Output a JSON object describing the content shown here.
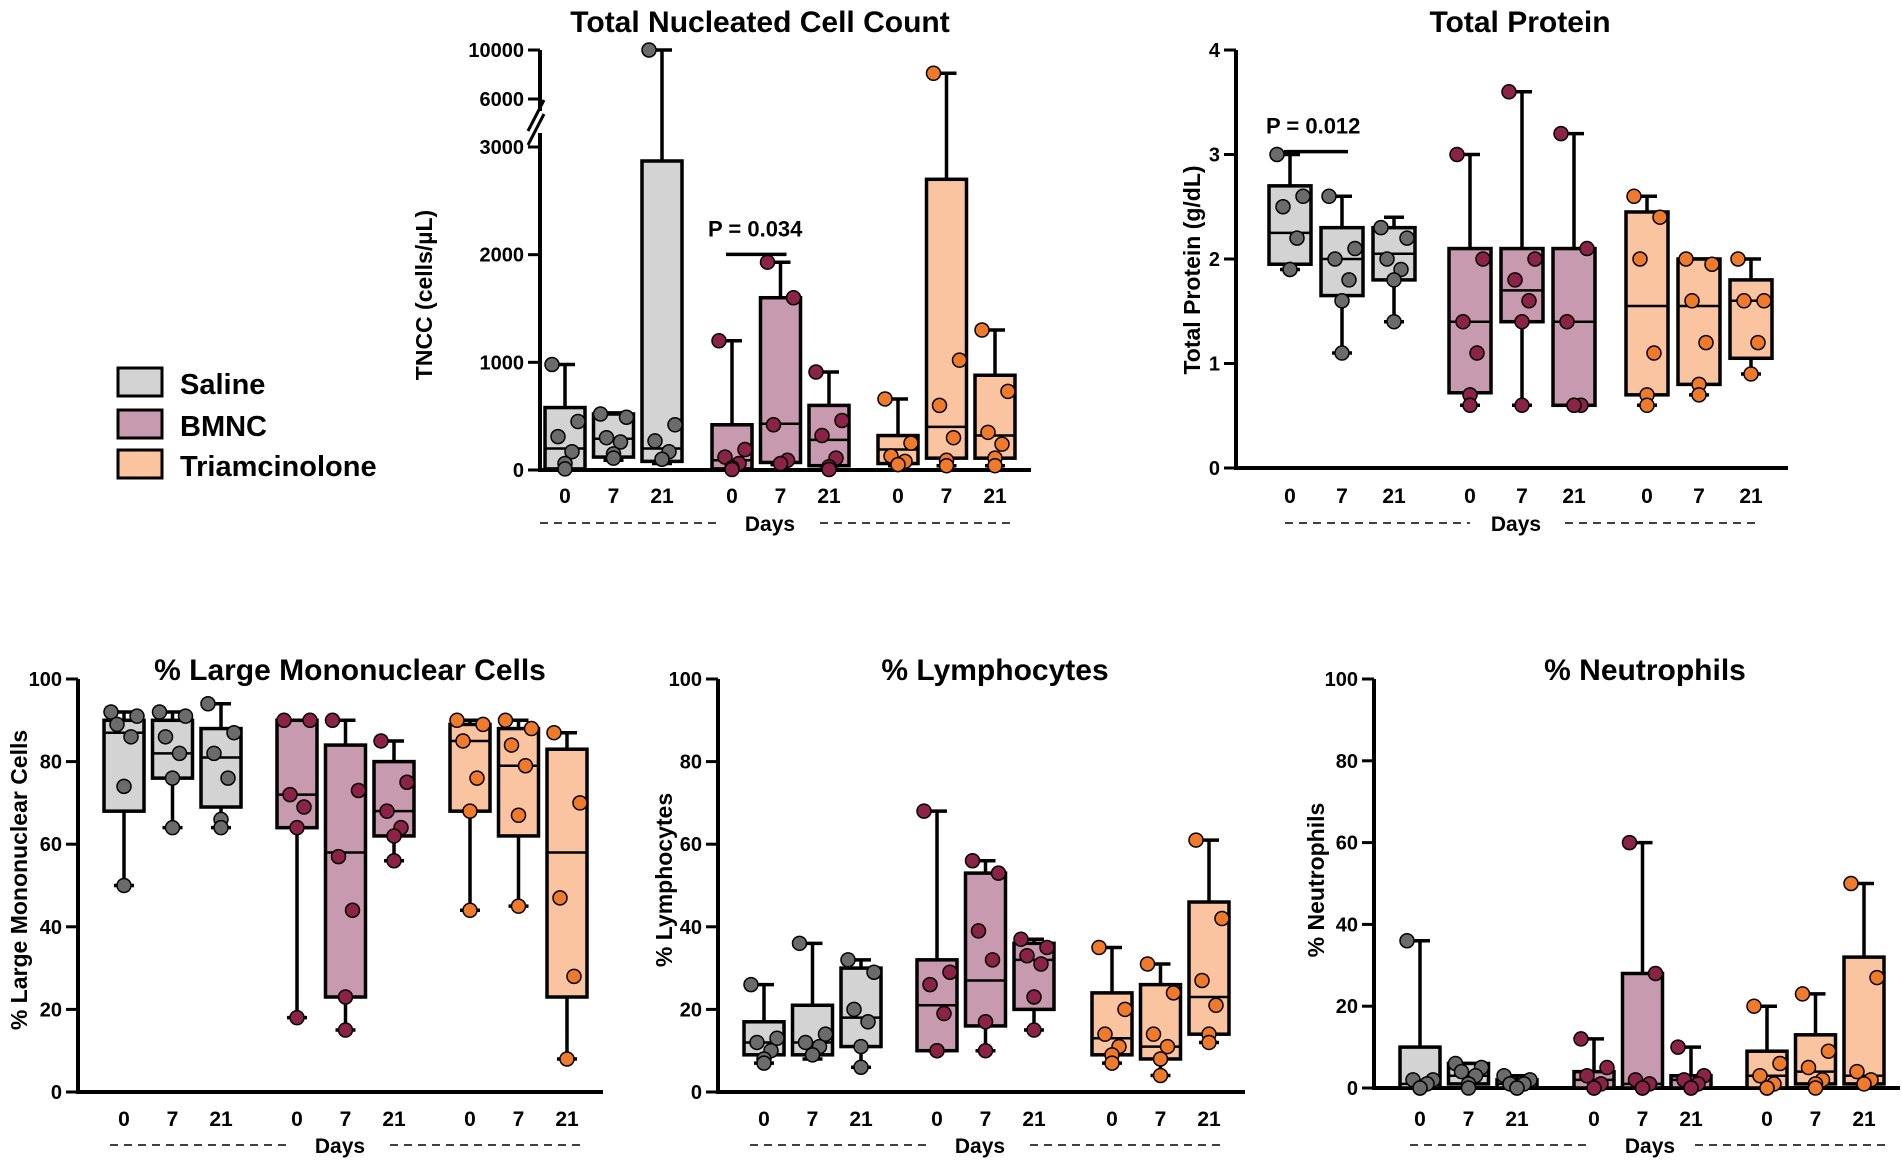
{
  "legend": [
    {
      "label": "Saline",
      "fill": "#d3d3d3",
      "dot": "#6b6b6b"
    },
    {
      "label": "BMNC",
      "fill": "#c79aaf",
      "dot": "#8b2346"
    },
    {
      "label": "Triamcinolone",
      "fill": "#fbc4a0",
      "dot": "#ef7a2c"
    }
  ],
  "chart_data": [
    {
      "id": "tncc",
      "type": "box",
      "title": "Total Nucleated Cell Count",
      "ylabel": "TNCC (cells/µL)",
      "xlabel": "Days",
      "ylim": [
        0,
        10000
      ],
      "y_break": [
        3000,
        6000
      ],
      "yticks": [
        0,
        1000,
        2000,
        3000,
        6000,
        10000
      ],
      "ytick_labels": [
        "0",
        "1000",
        "2000",
        "3000",
        "6000",
        "10000"
      ],
      "days": [
        "0",
        "7",
        "21"
      ],
      "significance": {
        "label": "P = 0.034",
        "from_group": 1,
        "from_day": 0,
        "to_day": 1,
        "y": 2170
      },
      "groups": [
        {
          "name": "Saline",
          "boxes": [
            {
              "day": "0",
              "min": 0,
              "q1": 10,
              "median": 200,
              "q3": 580,
              "max": 980,
              "points": [
                980,
                450,
                310,
                170,
                60,
                10
              ]
            },
            {
              "day": "7",
              "min": 90,
              "q1": 120,
              "median": 290,
              "q3": 520,
              "max": 530,
              "points": [
                520,
                490,
                300,
                260,
                150,
                110
              ]
            },
            {
              "day": "21",
              "min": 60,
              "q1": 80,
              "median": 200,
              "q3": 2870,
              "max": 10000,
              "points": [
                10000,
                420,
                270,
                170,
                100
              ]
            }
          ]
        },
        {
          "name": "BMNC",
          "boxes": [
            {
              "day": "0",
              "min": 0,
              "q1": 10,
              "median": 90,
              "q3": 420,
              "max": 1200,
              "points": [
                1200,
                190,
                120,
                60,
                20,
                5
              ]
            },
            {
              "day": "7",
              "min": 50,
              "q1": 70,
              "median": 430,
              "q3": 1600,
              "max": 1930,
              "points": [
                1930,
                1600,
                420,
                90,
                60
              ]
            },
            {
              "day": "21",
              "min": 5,
              "q1": 40,
              "median": 280,
              "q3": 600,
              "max": 910,
              "points": [
                910,
                460,
                320,
                110,
                30,
                5
              ]
            }
          ]
        },
        {
          "name": "Triamcinolone",
          "boxes": [
            {
              "day": "0",
              "min": 40,
              "q1": 60,
              "median": 190,
              "q3": 320,
              "max": 660,
              "points": [
                660,
                250,
                130,
                80,
                50
              ]
            },
            {
              "day": "7",
              "min": 40,
              "q1": 110,
              "median": 400,
              "q3": 2700,
              "max": 8100,
              "points": [
                8100,
                1020,
                600,
                300,
                90,
                40
              ]
            },
            {
              "day": "21",
              "min": 40,
              "q1": 110,
              "median": 320,
              "q3": 880,
              "max": 1300,
              "points": [
                1300,
                730,
                350,
                240,
                110,
                40
              ]
            }
          ]
        }
      ]
    },
    {
      "id": "tp",
      "type": "box",
      "title": "Total Protein",
      "ylabel": "Total Protein (g/dL)",
      "xlabel": "Days",
      "ylim": [
        0,
        4
      ],
      "yticks": [
        0,
        1,
        2,
        3,
        4
      ],
      "ytick_labels": [
        "0",
        "1",
        "2",
        "3",
        "4"
      ],
      "days": [
        "0",
        "7",
        "21"
      ],
      "significance": {
        "label": "P = 0.012",
        "from_group": 0,
        "from_day": 0,
        "to_day": 1,
        "y": 3.2
      },
      "groups": [
        {
          "name": "Saline",
          "boxes": [
            {
              "day": "0",
              "min": 1.9,
              "q1": 1.95,
              "median": 2.25,
              "q3": 2.7,
              "max": 3.0,
              "points": [
                3.0,
                2.6,
                2.5,
                2.2,
                1.9,
                1.9
              ]
            },
            {
              "day": "7",
              "min": 1.1,
              "q1": 1.65,
              "median": 2.0,
              "q3": 2.3,
              "max": 2.6,
              "points": [
                2.6,
                2.1,
                2.0,
                1.8,
                1.6,
                1.1
              ]
            },
            {
              "day": "21",
              "min": 1.4,
              "q1": 1.8,
              "median": 2.05,
              "q3": 2.3,
              "max": 2.4,
              "points": [
                2.3,
                2.2,
                2.0,
                1.9,
                1.8,
                1.4
              ]
            }
          ]
        },
        {
          "name": "BMNC",
          "boxes": [
            {
              "day": "0",
              "min": 0.6,
              "q1": 0.72,
              "median": 1.4,
              "q3": 2.1,
              "max": 3.0,
              "points": [
                3.0,
                2.0,
                1.4,
                1.1,
                0.7,
                0.6
              ]
            },
            {
              "day": "7",
              "min": 0.6,
              "q1": 1.4,
              "median": 1.7,
              "q3": 2.1,
              "max": 3.6,
              "points": [
                3.6,
                2.0,
                1.8,
                1.6,
                1.4,
                0.6
              ]
            },
            {
              "day": "21",
              "min": 0.6,
              "q1": 0.6,
              "median": 1.4,
              "q3": 2.1,
              "max": 3.2,
              "points": [
                3.2,
                2.1,
                1.4,
                0.6,
                0.6,
                0.6
              ]
            }
          ]
        },
        {
          "name": "Triamcinolone",
          "boxes": [
            {
              "day": "0",
              "min": 0.6,
              "q1": 0.7,
              "median": 1.55,
              "q3": 2.45,
              "max": 2.6,
              "points": [
                2.6,
                2.4,
                2.0,
                1.1,
                0.7,
                0.6
              ]
            },
            {
              "day": "7",
              "min": 0.7,
              "q1": 0.8,
              "median": 1.55,
              "q3": 2.0,
              "max": 2.0,
              "points": [
                2.0,
                1.95,
                1.6,
                1.2,
                0.8,
                0.7
              ]
            },
            {
              "day": "21",
              "min": 0.9,
              "q1": 1.05,
              "median": 1.6,
              "q3": 1.8,
              "max": 2.0,
              "points": [
                2.0,
                1.6,
                1.6,
                1.2,
                0.9
              ]
            }
          ]
        }
      ]
    },
    {
      "id": "lmc",
      "type": "box",
      "title": "% Large Mononuclear Cells",
      "ylabel": "% Large Mononuclear Cells",
      "xlabel": "Days",
      "ylim": [
        0,
        100
      ],
      "yticks": [
        0,
        20,
        40,
        60,
        80,
        100
      ],
      "ytick_labels": [
        "0",
        "20",
        "40",
        "60",
        "80",
        "100"
      ],
      "days": [
        "0",
        "7",
        "21"
      ],
      "groups": [
        {
          "name": "Saline",
          "boxes": [
            {
              "day": "0",
              "min": 50,
              "q1": 68,
              "median": 87,
              "q3": 90,
              "max": 92,
              "points": [
                92,
                91,
                89,
                86,
                74,
                50
              ]
            },
            {
              "day": "7",
              "min": 64,
              "q1": 76,
              "median": 82,
              "q3": 90,
              "max": 92,
              "points": [
                92,
                91,
                86,
                82,
                76,
                64
              ]
            },
            {
              "day": "21",
              "min": 64,
              "q1": 69,
              "median": 81,
              "q3": 88,
              "max": 94,
              "points": [
                94,
                87,
                82,
                76,
                66,
                64
              ]
            }
          ]
        },
        {
          "name": "BMNC",
          "boxes": [
            {
              "day": "0",
              "min": 18,
              "q1": 64,
              "median": 72,
              "q3": 90,
              "max": 90,
              "points": [
                90,
                90,
                72,
                69,
                64,
                18
              ]
            },
            {
              "day": "7",
              "min": 15,
              "q1": 23,
              "median": 58,
              "q3": 84,
              "max": 90,
              "points": [
                90,
                73,
                57,
                44,
                23,
                15
              ]
            },
            {
              "day": "21",
              "min": 56,
              "q1": 62,
              "median": 68,
              "q3": 80,
              "max": 85,
              "points": [
                85,
                75,
                68,
                64,
                62,
                56
              ]
            }
          ]
        },
        {
          "name": "Triamcinolone",
          "boxes": [
            {
              "day": "0",
              "min": 44,
              "q1": 68,
              "median": 85,
              "q3": 89,
              "max": 90,
              "points": [
                90,
                89,
                85,
                76,
                68,
                44
              ]
            },
            {
              "day": "7",
              "min": 45,
              "q1": 62,
              "median": 79,
              "q3": 88,
              "max": 90,
              "points": [
                90,
                88,
                84,
                79,
                67,
                45
              ]
            },
            {
              "day": "21",
              "min": 8,
              "q1": 23,
              "median": 58,
              "q3": 83,
              "max": 87,
              "points": [
                87,
                70,
                47,
                28,
                8
              ]
            }
          ]
        }
      ]
    },
    {
      "id": "lym",
      "type": "box",
      "title": "% Lymphocytes",
      "ylabel": "% Lymphocytes",
      "xlabel": "Days",
      "ylim": [
        0,
        100
      ],
      "yticks": [
        0,
        20,
        40,
        60,
        80,
        100
      ],
      "ytick_labels": [
        "0",
        "20",
        "40",
        "60",
        "80",
        "100"
      ],
      "days": [
        "0",
        "7",
        "21"
      ],
      "groups": [
        {
          "name": "Saline",
          "boxes": [
            {
              "day": "0",
              "min": 7,
              "q1": 9,
              "median": 12,
              "q3": 17,
              "max": 26,
              "points": [
                26,
                13,
                12,
                10,
                8,
                7
              ]
            },
            {
              "day": "7",
              "min": 8,
              "q1": 9,
              "median": 12,
              "q3": 21,
              "max": 36,
              "points": [
                36,
                14,
                12,
                11,
                9,
                9
              ]
            },
            {
              "day": "21",
              "min": 6,
              "q1": 11,
              "median": 18,
              "q3": 30,
              "max": 32,
              "points": [
                32,
                29,
                20,
                17,
                11,
                6
              ]
            }
          ]
        },
        {
          "name": "BMNC",
          "boxes": [
            {
              "day": "0",
              "min": 10,
              "q1": 10,
              "median": 21,
              "q3": 32,
              "max": 68,
              "points": [
                68,
                29,
                26,
                19,
                10,
                10
              ]
            },
            {
              "day": "7",
              "min": 10,
              "q1": 16,
              "median": 27,
              "q3": 53,
              "max": 56,
              "points": [
                56,
                53,
                39,
                32,
                17,
                10
              ]
            },
            {
              "day": "21",
              "min": 15,
              "q1": 20,
              "median": 32,
              "q3": 36,
              "max": 37,
              "points": [
                37,
                35,
                33,
                31,
                23,
                15
              ]
            }
          ]
        },
        {
          "name": "Triamcinolone",
          "boxes": [
            {
              "day": "0",
              "min": 7,
              "q1": 9,
              "median": 13,
              "q3": 24,
              "max": 35,
              "points": [
                35,
                20,
                14,
                11,
                9,
                7
              ]
            },
            {
              "day": "7",
              "min": 4,
              "q1": 8,
              "median": 11,
              "q3": 26,
              "max": 31,
              "points": [
                31,
                24,
                14,
                11,
                8,
                4
              ]
            },
            {
              "day": "21",
              "min": 12,
              "q1": 14,
              "median": 23,
              "q3": 46,
              "max": 61,
              "points": [
                61,
                42,
                27,
                21,
                14,
                12
              ]
            }
          ]
        }
      ]
    },
    {
      "id": "neu",
      "type": "box",
      "title": "% Neutrophils",
      "ylabel": "% Neutrophils",
      "xlabel": "Days",
      "ylim": [
        0,
        100
      ],
      "yticks": [
        0,
        20,
        40,
        60,
        80,
        100
      ],
      "ytick_labels": [
        "0",
        "20",
        "40",
        "60",
        "80",
        "100"
      ],
      "days": [
        "0",
        "7",
        "21"
      ],
      "groups": [
        {
          "name": "Saline",
          "boxes": [
            {
              "day": "0",
              "min": 0,
              "q1": 0,
              "median": 1,
              "q3": 10,
              "max": 36,
              "points": [
                36,
                2,
                2,
                1,
                0,
                0
              ]
            },
            {
              "day": "7",
              "min": 0,
              "q1": 1,
              "median": 3,
              "q3": 6,
              "max": 6,
              "points": [
                6,
                5,
                4,
                3,
                1,
                0
              ]
            },
            {
              "day": "21",
              "min": 0,
              "q1": 0,
              "median": 1,
              "q3": 2,
              "max": 3,
              "points": [
                3,
                2,
                1,
                1,
                0,
                0
              ]
            }
          ]
        },
        {
          "name": "BMNC",
          "boxes": [
            {
              "day": "0",
              "min": 0,
              "q1": 0,
              "median": 2,
              "q3": 4,
              "max": 12,
              "points": [
                12,
                5,
                3,
                1,
                0,
                0
              ]
            },
            {
              "day": "7",
              "min": 0,
              "q1": 0,
              "median": 1,
              "q3": 28,
              "max": 60,
              "points": [
                60,
                28,
                2,
                1,
                0,
                0
              ]
            },
            {
              "day": "21",
              "min": 0,
              "q1": 0,
              "median": 2,
              "q3": 3,
              "max": 10,
              "points": [
                10,
                3,
                2,
                1,
                0,
                0
              ]
            }
          ]
        },
        {
          "name": "Triamcinolone",
          "boxes": [
            {
              "day": "0",
              "min": 0,
              "q1": 0,
              "median": 3,
              "q3": 9,
              "max": 20,
              "points": [
                20,
                6,
                3,
                1,
                0,
                0
              ]
            },
            {
              "day": "7",
              "min": 0,
              "q1": 1,
              "median": 4,
              "q3": 13,
              "max": 23,
              "points": [
                23,
                9,
                5,
                2,
                1,
                0
              ]
            },
            {
              "day": "21",
              "min": 1,
              "q1": 1,
              "median": 3,
              "q3": 32,
              "max": 50,
              "points": [
                50,
                27,
                4,
                2,
                1
              ]
            }
          ]
        }
      ]
    }
  ]
}
